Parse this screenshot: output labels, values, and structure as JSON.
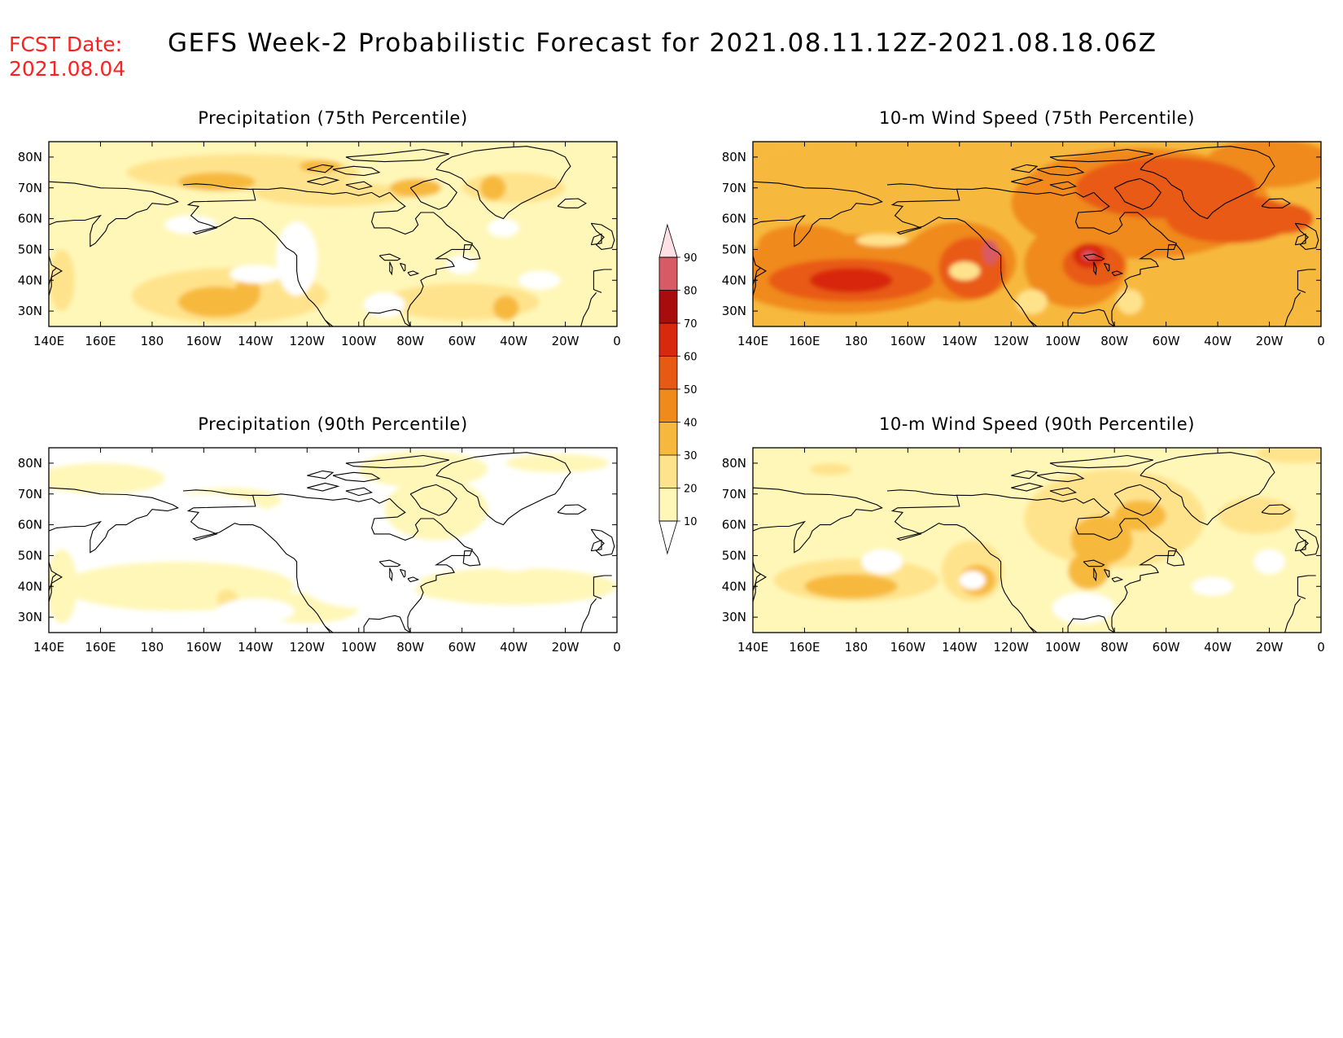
{
  "header": {
    "fcst_label": "FCST Date:",
    "fcst_date": "2021.08.04",
    "title": "GEFS Week-2 Probabilistic Forecast for 2021.08.11.12Z-2021.08.18.06Z"
  },
  "colors": {
    "header_red": "#ff2020",
    "levels": [
      "#ffffff",
      "#fff7b8",
      "#ffe38c",
      "#f7b93d",
      "#f08a1a",
      "#e85a14",
      "#d8280e",
      "#a80c0c",
      "#d85a64",
      "#f0a8b0",
      "#ffe0e4"
    ]
  },
  "colorbar": {
    "levels": [
      "10",
      "20",
      "30",
      "40",
      "50",
      "60",
      "70",
      "80",
      "90"
    ]
  },
  "axes": {
    "x_ticks": [
      "140E",
      "160E",
      "180",
      "160W",
      "140W",
      "120W",
      "100W",
      "80W",
      "60W",
      "40W",
      "20W",
      "0"
    ],
    "y_ticks": [
      "80N",
      "70N",
      "60N",
      "50N",
      "40N",
      "30N"
    ]
  },
  "panels": [
    {
      "title": "Precipitation (75th Percentile)",
      "intensity": "low"
    },
    {
      "title": "10-m Wind Speed (75th Percentile)",
      "intensity": "high"
    },
    {
      "title": "Precipitation (90th Percentile)",
      "intensity": "minimal"
    },
    {
      "title": "10-m Wind Speed (90th Percentile)",
      "intensity": "moderate"
    }
  ]
}
